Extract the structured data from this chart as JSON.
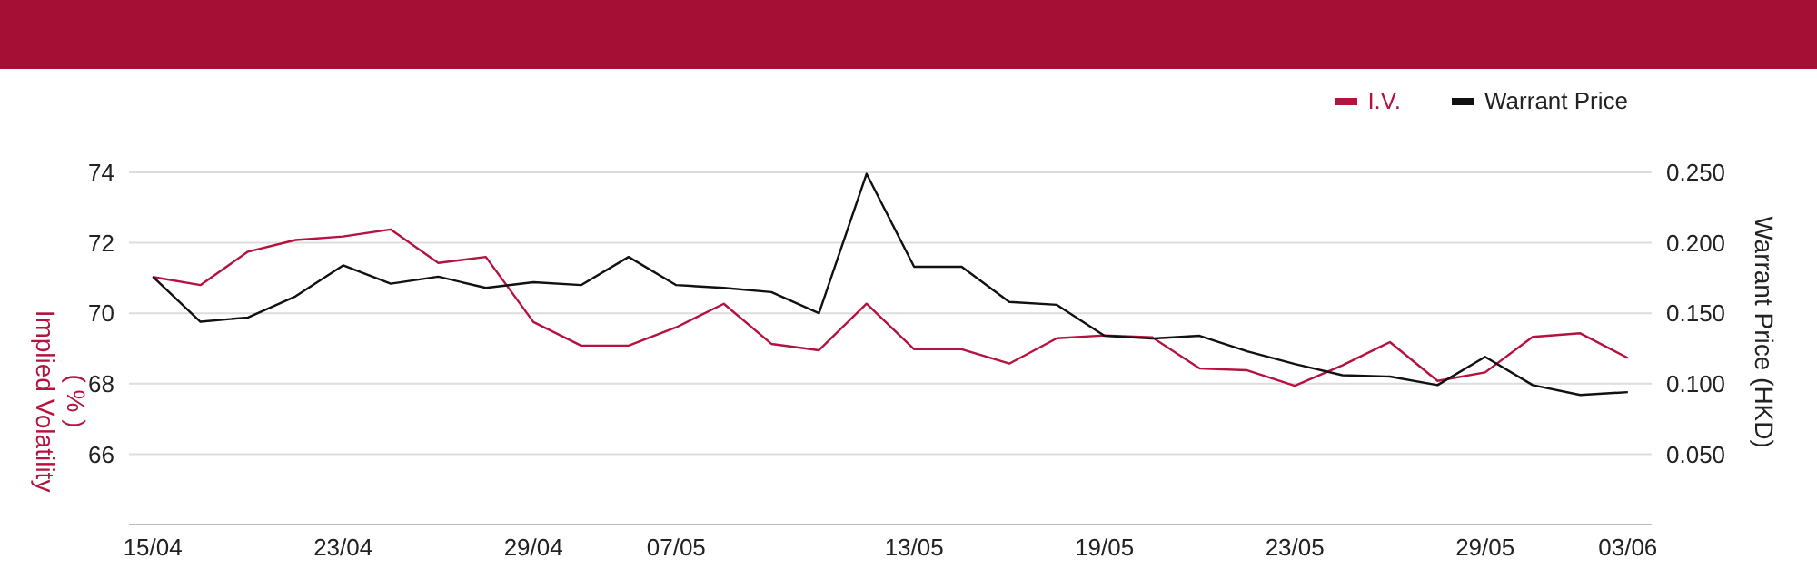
{
  "chart_data": {
    "type": "line",
    "ylabel": "Implied Volatility ( % )",
    "y2label": "Warrant Price (HKD)",
    "categories": [
      "15/04",
      null,
      null,
      null,
      "23/04",
      null,
      null,
      null,
      "29/04",
      null,
      null,
      "07/05",
      null,
      null,
      null,
      null,
      "13/05",
      null,
      null,
      null,
      "19/05",
      null,
      null,
      null,
      "23/05",
      null,
      null,
      null,
      "29/05",
      null,
      null,
      "03/06"
    ],
    "series": [
      {
        "name": "I.V.",
        "color": "#b5123f",
        "values": [
          71.03,
          70.8,
          71.75,
          72.08,
          72.18,
          72.38,
          71.43,
          71.6,
          69.75,
          69.08,
          69.08,
          69.6,
          70.27,
          69.13,
          68.95,
          70.27,
          68.98,
          68.98,
          68.57,
          69.29,
          69.37,
          69.32,
          68.43,
          68.38,
          67.94,
          68.52,
          69.18,
          68.08,
          68.32,
          69.33,
          69.43,
          68.73
        ]
      },
      {
        "name": "Warrant Price",
        "color": "#111111",
        "axis": "y2",
        "values": [
          0.176,
          0.144,
          0.147,
          0.162,
          0.184,
          0.171,
          0.176,
          0.168,
          0.172,
          0.17,
          0.19,
          0.17,
          0.168,
          0.165,
          0.15,
          0.249,
          0.183,
          0.183,
          0.158,
          0.156,
          0.134,
          0.132,
          0.134,
          0.123,
          0.114,
          0.106,
          0.105,
          0.099,
          0.119,
          0.099,
          0.092,
          0.094
        ]
      }
    ],
    "ylim": [
      64,
      74
    ],
    "yticks": [
      66,
      68,
      70,
      72,
      74
    ],
    "y2lim": [
      0,
      0.25
    ],
    "y2ticks": [
      {
        "value": 0.05,
        "label": "0.050"
      },
      {
        "value": 0.1,
        "label": "0.100"
      },
      {
        "value": 0.15,
        "label": "0.150"
      },
      {
        "value": 0.2,
        "label": "0.200"
      },
      {
        "value": 0.25,
        "label": "0.250"
      }
    ],
    "grid": "y",
    "legend": "top right",
    "marker": "none",
    "line_style": "solid"
  }
}
